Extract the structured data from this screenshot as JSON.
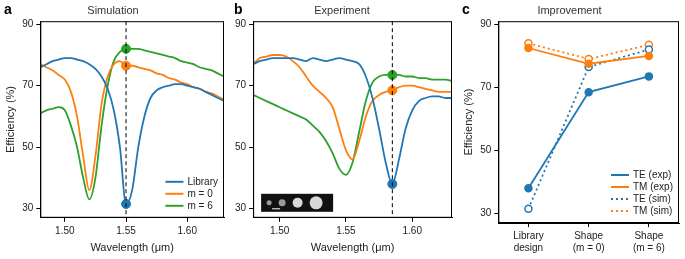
{
  "chart_data": [
    {
      "type": "line",
      "panel": "a",
      "title": "Simulation",
      "x_label": "Wavelength (μm)",
      "y_label": "Efficiency (%)",
      "x": [
        1.48,
        1.485,
        1.49,
        1.495,
        1.5,
        1.505,
        1.51,
        1.515,
        1.52,
        1.525,
        1.53,
        1.535,
        1.54,
        1.545,
        1.55,
        1.555,
        1.56,
        1.565,
        1.57,
        1.575,
        1.58,
        1.585,
        1.59,
        1.595,
        1.6,
        1.605,
        1.61,
        1.615,
        1.62,
        1.625,
        1.63
      ],
      "series": [
        {
          "name": "Library",
          "color": "#1f77b4",
          "line_style": "solid",
          "vline_value": 31.5,
          "values": [
            76,
            77,
            78,
            78.5,
            79,
            79,
            78.5,
            78,
            77,
            75.5,
            73,
            69,
            62,
            50,
            31.5,
            36,
            50,
            60,
            66,
            68.5,
            69.5,
            70,
            70.5,
            70.5,
            70,
            69.5,
            69,
            68,
            67,
            66,
            65
          ]
        },
        {
          "name": "m = 0",
          "color": "#ff7f0e",
          "line_style": "solid",
          "vline_value": 76.5,
          "values": [
            77,
            76,
            75,
            73.5,
            72,
            68,
            60,
            47,
            36,
            47,
            64,
            73,
            77,
            78,
            76.5,
            76.5,
            76,
            75.5,
            75,
            74,
            73.5,
            72.5,
            72,
            71,
            70.5,
            69.5,
            69,
            68,
            67.5,
            66.5,
            65.5
          ]
        },
        {
          "name": "m = 6",
          "color": "#2ca02c",
          "line_style": "solid",
          "vline_value": 82,
          "values": [
            61,
            62,
            62.5,
            63,
            62,
            57,
            50,
            40,
            33,
            40,
            57,
            70,
            78,
            81,
            82,
            82,
            82,
            81.5,
            81,
            80.5,
            80,
            79.5,
            79,
            78,
            77.5,
            77,
            76,
            75.5,
            75,
            74,
            73
          ]
        }
      ],
      "vline": 1.55,
      "xlim": [
        1.48,
        1.63
      ],
      "xticks": [
        {
          "value": 1.5,
          "label": "1.50"
        },
        {
          "value": 1.55,
          "label": "1.55"
        },
        {
          "value": 1.6,
          "label": "1.60"
        }
      ],
      "ylim": [
        27,
        91
      ],
      "yticks": [
        30,
        50,
        70,
        90
      ],
      "grid": false,
      "legend": "lower right"
    },
    {
      "type": "line",
      "panel": "b",
      "title": "Experiment",
      "x_label": "Wavelength (μm)",
      "x": [
        1.48,
        1.485,
        1.49,
        1.495,
        1.5,
        1.505,
        1.51,
        1.515,
        1.52,
        1.525,
        1.53,
        1.535,
        1.54,
        1.545,
        1.55,
        1.555,
        1.56,
        1.565,
        1.57,
        1.575,
        1.58,
        1.585,
        1.59,
        1.595,
        1.6,
        1.605,
        1.61,
        1.615,
        1.62,
        1.625,
        1.63
      ],
      "series": [
        {
          "name": "Library",
          "color": "#1f77b4",
          "line_style": "solid",
          "vline_value": 38,
          "values": [
            77,
            78,
            78.5,
            79,
            79,
            79,
            79,
            78.5,
            78,
            79,
            78.5,
            78,
            78.5,
            79,
            78.5,
            78,
            77,
            73,
            66,
            56,
            45,
            38,
            46,
            56,
            62,
            65,
            66,
            66.5,
            66.5,
            66,
            66
          ]
        },
        {
          "name": "m = 0",
          "color": "#ff7f0e",
          "line_style": "solid",
          "vline_value": 68.5,
          "values": [
            77,
            79,
            79.5,
            80,
            80,
            79.5,
            78,
            76,
            73,
            70,
            68,
            66,
            63,
            56,
            49,
            46,
            52,
            60,
            65,
            67,
            68,
            68.5,
            69.5,
            70,
            70,
            69.5,
            69,
            68.5,
            68,
            68,
            68
          ]
        },
        {
          "name": "m = 6",
          "color": "#2ca02c",
          "line_style": "solid",
          "vline_value": 73.5,
          "values": [
            67,
            66,
            65,
            64,
            63,
            62,
            61,
            60,
            59,
            57,
            55,
            52,
            48,
            43,
            41,
            45,
            55,
            65,
            71,
            73,
            73.5,
            73.5,
            73.5,
            73,
            73,
            72.5,
            72.5,
            72,
            72,
            72,
            71.5
          ]
        }
      ],
      "vline": 1.585,
      "xlim": [
        1.48,
        1.63
      ],
      "xticks": [
        {
          "value": 1.5,
          "label": "1.50"
        },
        {
          "value": 1.55,
          "label": "1.55"
        },
        {
          "value": 1.6,
          "label": "1.60"
        }
      ],
      "ylim": [
        27,
        91
      ],
      "yticks": [
        30,
        50,
        70,
        90
      ],
      "grid": false
    },
    {
      "type": "line",
      "panel": "c",
      "title": "Improvement",
      "y_label": "Efficiency (%)",
      "categories": [
        "Library design",
        "Shape (m = 0)",
        "Shape (m = 6)"
      ],
      "series": [
        {
          "name": "TE (exp)",
          "color": "#1f77b4",
          "line_style": "solid",
          "marker": "circle",
          "values": [
            38,
            68.5,
            73.5
          ]
        },
        {
          "name": "TM (exp)",
          "color": "#ff7f0e",
          "line_style": "solid",
          "marker": "circle",
          "values": [
            82.5,
            77.5,
            80
          ]
        },
        {
          "name": "TE (sim)",
          "color": "#1f77b4",
          "line_style": "dotted",
          "marker": "open_circle",
          "values": [
            31.5,
            76.5,
            82
          ]
        },
        {
          "name": "TM (sim)",
          "color": "#ff7f0e",
          "line_style": "dotted",
          "marker": "open_circle",
          "values": [
            84,
            79,
            83.5
          ]
        }
      ],
      "ylim": [
        27,
        91
      ],
      "yticks": [
        30,
        50,
        70,
        90
      ],
      "grid": false,
      "legend": "lower right"
    }
  ]
}
